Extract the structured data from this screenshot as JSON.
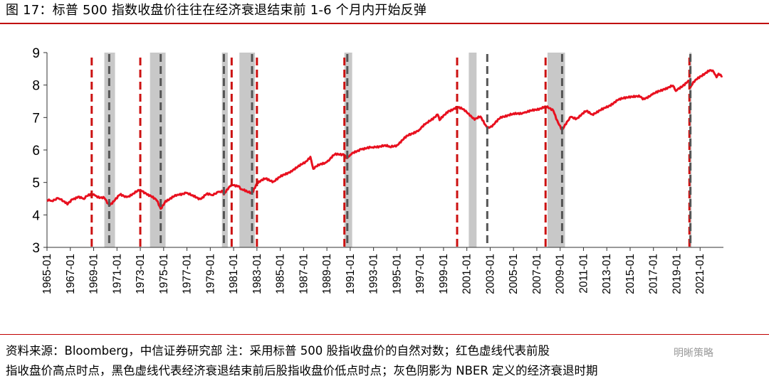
{
  "title": "图 17：标普 500 指数收盘价往往在经济衰退结束前 1-6 个月内开始反弹",
  "footer": {
    "line1": "资料来源：Bloomberg，中信证券研究部   注：采用标普 500 股指收盘价的自然对数；红色虚线代表前股",
    "line2": "指收盘价高点时点，黑色虚线代表经济衰退结束前后股指收盘价低点时点；灰色阴影为 NBER 定义的经济衰退时期"
  },
  "watermark": "明晰策略",
  "colors": {
    "series": "#e8101f",
    "red_dash": "#cc1111",
    "black_dash": "#555555",
    "recession": "#c8c8c8",
    "axis": "#333333",
    "accent": "#c00000"
  },
  "chart_data": {
    "type": "line",
    "ylim": [
      3,
      9
    ],
    "y_ticks": [
      3,
      4,
      5,
      6,
      7,
      8,
      9
    ],
    "x_range": [
      "1965-01",
      "2022-12"
    ],
    "x_tick_labels": [
      "1965-01",
      "1967-01",
      "1969-01",
      "1971-01",
      "1973-01",
      "1975-01",
      "1977-01",
      "1979-01",
      "1981-01",
      "1983-01",
      "1985-01",
      "1987-01",
      "1989-01",
      "1991-01",
      "1993-01",
      "1995-01",
      "1997-01",
      "1999-01",
      "2001-01",
      "2003-01",
      "2005-01",
      "2007-01",
      "2009-01",
      "2011-01",
      "2013-01",
      "2015-01",
      "2017-01",
      "2019-01",
      "2021-01"
    ],
    "recessions": [
      {
        "start": "1969-12",
        "end": "1970-11"
      },
      {
        "start": "1973-11",
        "end": "1975-03"
      },
      {
        "start": "1980-01",
        "end": "1980-07"
      },
      {
        "start": "1981-07",
        "end": "1982-11"
      },
      {
        "start": "1990-07",
        "end": "1991-03"
      },
      {
        "start": "2001-03",
        "end": "2001-11"
      },
      {
        "start": "2007-12",
        "end": "2009-06"
      },
      {
        "start": "2020-02",
        "end": "2020-04"
      }
    ],
    "red_dashed_lines": [
      "1968-11",
      "1973-01",
      "1980-11",
      "1983-01",
      "1990-07",
      "2000-03",
      "2007-10",
      "2020-02"
    ],
    "black_dashed_lines": [
      "1970-05",
      "1974-10",
      "1980-03",
      "1982-08",
      "1990-10",
      "2002-10",
      "2009-03",
      "2020-03"
    ],
    "series": [
      {
        "values": [
          [
            "1965-01",
            4.45
          ],
          [
            "1965-06",
            4.43
          ],
          [
            "1965-12",
            4.52
          ],
          [
            "1966-03",
            4.48
          ],
          [
            "1966-06",
            4.42
          ],
          [
            "1966-10",
            4.32
          ],
          [
            "1967-03",
            4.48
          ],
          [
            "1967-09",
            4.56
          ],
          [
            "1968-03",
            4.49
          ],
          [
            "1968-06",
            4.58
          ],
          [
            "1968-11",
            4.66
          ],
          [
            "1969-02",
            4.61
          ],
          [
            "1969-07",
            4.52
          ],
          [
            "1969-12",
            4.52
          ],
          [
            "1970-05",
            4.3
          ],
          [
            "1970-11",
            4.46
          ],
          [
            "1971-04",
            4.62
          ],
          [
            "1971-11",
            4.55
          ],
          [
            "1972-06",
            4.66
          ],
          [
            "1973-01",
            4.77
          ],
          [
            "1973-07",
            4.66
          ],
          [
            "1973-12",
            4.58
          ],
          [
            "1974-06",
            4.44
          ],
          [
            "1974-10",
            4.19
          ],
          [
            "1975-03",
            4.43
          ],
          [
            "1975-07",
            4.48
          ],
          [
            "1976-03",
            4.62
          ],
          [
            "1976-12",
            4.68
          ],
          [
            "1977-06",
            4.6
          ],
          [
            "1978-03",
            4.49
          ],
          [
            "1978-09",
            4.64
          ],
          [
            "1979-03",
            4.61
          ],
          [
            "1979-09",
            4.71
          ],
          [
            "1980-02",
            4.73
          ],
          [
            "1980-03",
            4.63
          ],
          [
            "1980-11",
            4.94
          ],
          [
            "1981-06",
            4.89
          ],
          [
            "1981-09",
            4.79
          ],
          [
            "1982-03",
            4.71
          ],
          [
            "1982-08",
            4.68
          ],
          [
            "1983-01",
            4.98
          ],
          [
            "1983-10",
            5.12
          ],
          [
            "1984-06",
            5.03
          ],
          [
            "1985-01",
            5.17
          ],
          [
            "1985-12",
            5.35
          ],
          [
            "1986-06",
            5.45
          ],
          [
            "1987-03",
            5.64
          ],
          [
            "1987-08",
            5.79
          ],
          [
            "1987-11",
            5.42
          ],
          [
            "1988-06",
            5.56
          ],
          [
            "1989-01",
            5.63
          ],
          [
            "1989-09",
            5.86
          ],
          [
            "1990-06",
            5.87
          ],
          [
            "1990-10",
            5.75
          ],
          [
            "1991-01",
            5.85
          ],
          [
            "1991-12",
            6.03
          ],
          [
            "1992-12",
            6.08
          ],
          [
            "1993-12",
            6.14
          ],
          [
            "1994-06",
            6.09
          ],
          [
            "1995-01",
            6.15
          ],
          [
            "1995-12",
            6.44
          ],
          [
            "1996-12",
            6.62
          ],
          [
            "1997-08",
            6.84
          ],
          [
            "1998-07",
            7.09
          ],
          [
            "1998-09",
            6.92
          ],
          [
            "1999-06",
            7.2
          ],
          [
            "2000-03",
            7.31
          ],
          [
            "2000-10",
            7.25
          ],
          [
            "2001-03",
            7.12
          ],
          [
            "2001-09",
            6.93
          ],
          [
            "2002-03",
            7.03
          ],
          [
            "2002-10",
            6.69
          ],
          [
            "2003-03",
            6.72
          ],
          [
            "2003-12",
            7.02
          ],
          [
            "2004-12",
            7.1
          ],
          [
            "2005-12",
            7.15
          ],
          [
            "2006-12",
            7.24
          ],
          [
            "2007-10",
            7.34
          ],
          [
            "2008-06",
            7.21
          ],
          [
            "2008-10",
            6.91
          ],
          [
            "2009-03",
            6.62
          ],
          [
            "2009-12",
            7.02
          ],
          [
            "2010-06",
            6.97
          ],
          [
            "2011-04",
            7.2
          ],
          [
            "2011-10",
            7.1
          ],
          [
            "2012-12",
            7.3
          ],
          [
            "2013-12",
            7.53
          ],
          [
            "2014-12",
            7.65
          ],
          [
            "2015-12",
            7.64
          ],
          [
            "2016-02",
            7.56
          ],
          [
            "2016-12",
            7.71
          ],
          [
            "2017-12",
            7.88
          ],
          [
            "2018-09",
            7.98
          ],
          [
            "2018-12",
            7.82
          ],
          [
            "2019-12",
            8.1
          ],
          [
            "2020-02",
            8.13
          ],
          [
            "2020-03",
            7.93
          ],
          [
            "2020-08",
            8.15
          ],
          [
            "2021-01",
            8.27
          ],
          [
            "2021-12",
            8.46
          ],
          [
            "2022-03",
            8.4
          ],
          [
            "2022-06",
            8.24
          ],
          [
            "2022-08",
            8.35
          ],
          [
            "2022-12",
            8.28
          ]
        ]
      }
    ]
  }
}
